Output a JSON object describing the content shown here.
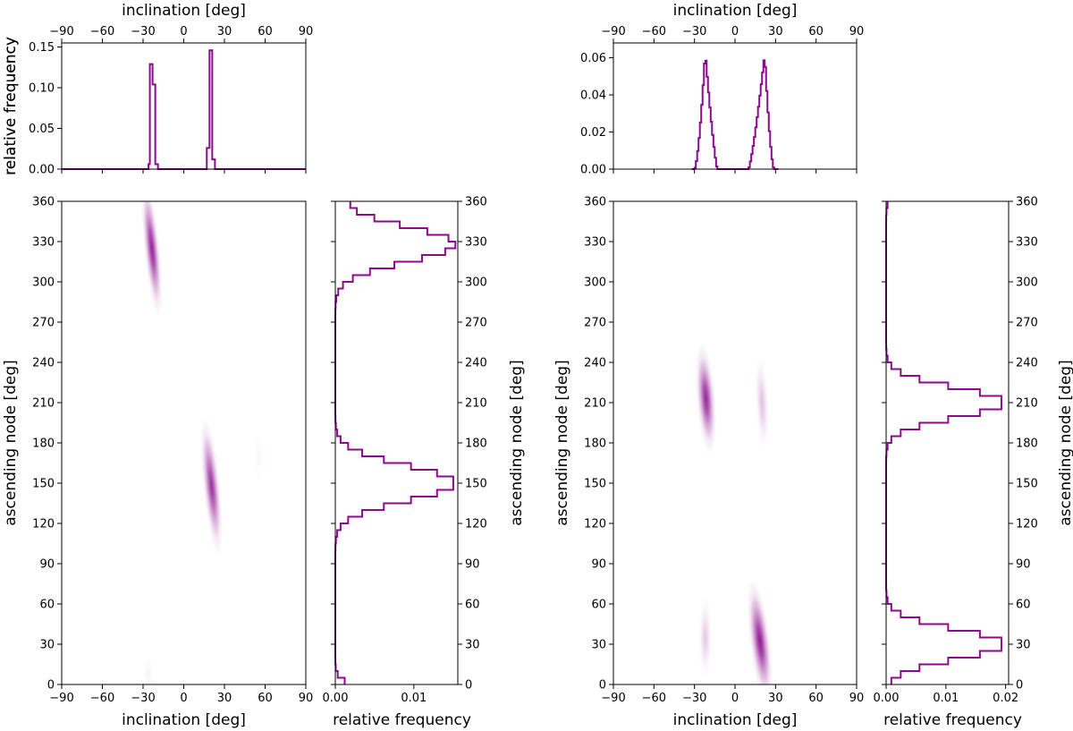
{
  "chart_data": [
    {
      "type": "histogram",
      "id": "L-top",
      "ylabel": "relative frequency",
      "xlabel_top": "inclination [deg]",
      "xlim": [
        -90,
        90
      ],
      "ylim": [
        0,
        0.155
      ],
      "xticks": [
        "−90",
        "−60",
        "−30",
        "0",
        "30",
        "60",
        "90"
      ],
      "xtick_values": [
        -90,
        -60,
        -30,
        0,
        30,
        60,
        90
      ],
      "yticks": [
        "0.00",
        "0.05",
        "0.10",
        "0.15"
      ],
      "ytick_values": [
        0,
        0.05,
        0.1,
        0.15
      ],
      "color": "#8b0a8d",
      "steps": [
        [
          -90,
          0
        ],
        [
          -26,
          0
        ],
        [
          -26,
          0.006
        ],
        [
          -25,
          0.006
        ],
        [
          -25,
          0.129
        ],
        [
          -23,
          0.129
        ],
        [
          -23,
          0.104
        ],
        [
          -21,
          0.104
        ],
        [
          -21,
          0.006
        ],
        [
          -19,
          0.006
        ],
        [
          -19,
          0
        ],
        [
          17,
          0
        ],
        [
          17,
          0.026
        ],
        [
          19,
          0.026
        ],
        [
          19,
          0.146
        ],
        [
          21,
          0.146
        ],
        [
          21,
          0.012
        ],
        [
          23,
          0.012
        ],
        [
          23,
          0
        ],
        [
          90,
          0
        ]
      ]
    },
    {
      "type": "heatmap",
      "id": "L-main",
      "xlabel": "inclination [deg]",
      "ylabel": "ascending node [deg]",
      "xlim": [
        -90,
        90
      ],
      "ylim": [
        0,
        360
      ],
      "xticks": [
        "−90",
        "−60",
        "−30",
        "0",
        "30",
        "60",
        "90"
      ],
      "xtick_values": [
        -90,
        -60,
        -30,
        0,
        30,
        60,
        90
      ],
      "yticks": [
        "0",
        "30",
        "60",
        "90",
        "120",
        "150",
        "180",
        "210",
        "240",
        "270",
        "300",
        "330",
        "360"
      ],
      "ytick_values": [
        0,
        30,
        60,
        90,
        120,
        150,
        180,
        210,
        240,
        270,
        300,
        330,
        360
      ],
      "color": "#8b0a8d",
      "blobs": [
        {
          "x": -23.5,
          "y": 325,
          "sx": 2.3,
          "sy": 20,
          "tilt": -0.1,
          "peak": 0.92
        },
        {
          "x": 20.5,
          "y": 148,
          "sx": 2.5,
          "sy": 20,
          "tilt": -0.1,
          "peak": 0.85
        },
        {
          "x": -26,
          "y": 8,
          "sx": 1.5,
          "sy": 6,
          "tilt": 0,
          "peak": 0.05
        },
        {
          "x": 55,
          "y": 170,
          "sx": 1.5,
          "sy": 8,
          "tilt": 0,
          "peak": 0.04
        }
      ]
    },
    {
      "type": "histogram",
      "id": "L-right",
      "orientation": "horizontal",
      "xlabel": "relative frequency",
      "ylabel": "ascending node [deg]",
      "xlim": [
        0,
        0.0156
      ],
      "ylim": [
        0,
        360
      ],
      "xticks": [
        "0.00",
        "0.01"
      ],
      "xtick_values": [
        0,
        0.01
      ],
      "yticks": [
        "0",
        "30",
        "60",
        "90",
        "120",
        "150",
        "180",
        "210",
        "240",
        "270",
        "300",
        "330",
        "360"
      ],
      "ytick_values": [
        0,
        30,
        60,
        90,
        120,
        150,
        180,
        210,
        240,
        270,
        300,
        330,
        360
      ],
      "color": "#8b0a8d",
      "bin_width": 5,
      "peaks": [
        {
          "center": 150,
          "amp": 0.0153,
          "sigma": 13
        },
        {
          "center": 328,
          "amp": 0.0153,
          "sigma": 13
        },
        {
          "center": 0,
          "amp": 0.0009,
          "sigma": 4
        }
      ]
    },
    {
      "type": "histogram",
      "id": "R-top",
      "ylabel": "relative frequency",
      "xlabel_top": "inclination [deg]",
      "xlim": [
        -90,
        90
      ],
      "ylim": [
        0,
        0.068
      ],
      "xticks": [
        "−90",
        "−60",
        "−30",
        "0",
        "30",
        "60",
        "90"
      ],
      "xtick_values": [
        -90,
        -60,
        -30,
        0,
        30,
        60,
        90
      ],
      "yticks": [
        "0.00",
        "0.02",
        "0.04",
        "0.06"
      ],
      "ytick_values": [
        0,
        0.02,
        0.04,
        0.06
      ],
      "color": "#8b0a8d",
      "bin_width": 1,
      "humps": [
        {
          "center": -22,
          "amp": 0.063,
          "rise": -30,
          "fall": -13
        },
        {
          "center": 22,
          "amp": 0.062,
          "rise": 10,
          "fall": 29,
          "mirror": true
        }
      ]
    },
    {
      "type": "heatmap",
      "id": "R-main",
      "xlabel": "inclination [deg]",
      "ylabel": "ascending node [deg]",
      "xlim": [
        -90,
        90
      ],
      "ylim": [
        0,
        360
      ],
      "xticks": [
        "−90",
        "−60",
        "−30",
        "0",
        "30",
        "60",
        "90"
      ],
      "xtick_values": [
        -90,
        -60,
        -30,
        0,
        30,
        60,
        90
      ],
      "yticks": [
        "0",
        "30",
        "60",
        "90",
        "120",
        "150",
        "180",
        "210",
        "240",
        "270",
        "300",
        "330",
        "360"
      ],
      "ytick_values": [
        0,
        30,
        60,
        90,
        120,
        150,
        180,
        210,
        240,
        270,
        300,
        330,
        360
      ],
      "color": "#8b0a8d",
      "blobs": [
        {
          "x": -21.5,
          "y": 213,
          "sx": 2.8,
          "sy": 16,
          "tilt": -0.08,
          "peak": 0.9
        },
        {
          "x": 18.5,
          "y": 32,
          "sx": 3.0,
          "sy": 18,
          "tilt": -0.12,
          "peak": 0.95
        },
        {
          "x": 20,
          "y": 210,
          "sx": 2.0,
          "sy": 14,
          "tilt": -0.05,
          "peak": 0.25
        },
        {
          "x": -22,
          "y": 35,
          "sx": 2.0,
          "sy": 12,
          "tilt": 0,
          "peak": 0.22
        }
      ]
    },
    {
      "type": "histogram",
      "id": "R-right",
      "orientation": "horizontal",
      "xlabel": "relative frequency",
      "ylabel": "ascending node [deg]",
      "xlim": [
        0,
        0.0205
      ],
      "ylim": [
        0,
        360
      ],
      "xticks": [
        "0.00",
        "0.01",
        "0.02"
      ],
      "xtick_values": [
        0,
        0.01,
        0.02
      ],
      "yticks": [
        "0",
        "30",
        "60",
        "90",
        "120",
        "150",
        "180",
        "210",
        "240",
        "270",
        "300",
        "330",
        "360"
      ],
      "ytick_values": [
        0,
        30,
        60,
        90,
        120,
        150,
        180,
        210,
        240,
        270,
        300,
        330,
        360
      ],
      "color": "#8b0a8d",
      "bin_width": 5,
      "peaks": [
        {
          "center": 210,
          "amp": 0.0198,
          "sigma": 11
        },
        {
          "center": 30,
          "amp": 0.0198,
          "sigma": 11
        }
      ]
    }
  ]
}
